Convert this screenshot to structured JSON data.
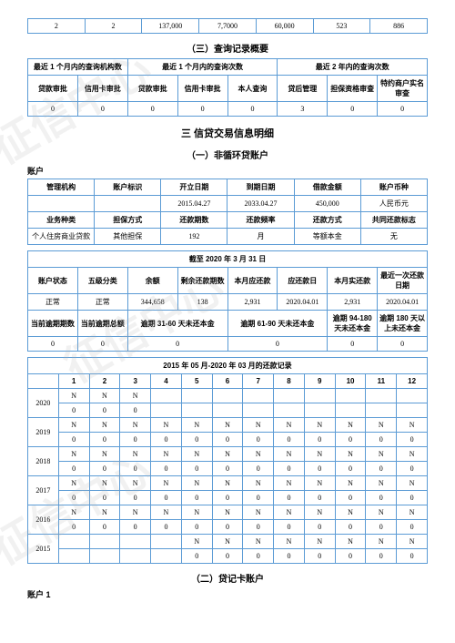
{
  "top_row": [
    "2",
    "2",
    "137,000",
    "7,7000",
    "60,000",
    "523",
    "886"
  ],
  "query_summary_title": "（三）查询记录概要",
  "query_headers_top": [
    "最近 1 个月内的查询机构数",
    "最近 1 个月内的查询次数",
    "最近 2 年内的查询次数"
  ],
  "query_headers": [
    "贷款审批",
    "信用卡审批",
    "贷款审批",
    "信用卡审批",
    "本人查询",
    "贷后管理",
    "担保资格审查",
    "特约商户实名审查"
  ],
  "query_values": [
    "0",
    "0",
    "0",
    "0",
    "0",
    "3",
    "0",
    "0"
  ],
  "section3_title": "三 信贷交易信息明细",
  "sub1_title": "（一）非循环贷账户",
  "account_label": "账户",
  "detail_h1": [
    "管理机构",
    "账户标识",
    "开立日期",
    "到期日期",
    "借款金额",
    "账户币种"
  ],
  "detail_v1": [
    "",
    "",
    "2015.04.27",
    "2033.04.27",
    "450,000",
    "人民币元"
  ],
  "detail_h2": [
    "业务种类",
    "担保方式",
    "还款期数",
    "还款频率",
    "还款方式",
    "共同还款标志"
  ],
  "detail_v2": [
    "个人住房商业贷款",
    "其他担保",
    "192",
    "月",
    "等额本金",
    "无"
  ],
  "cutoff_label": "截至 2020 年 3 月 31 日",
  "detail_h3": [
    "账户状态",
    "五级分类",
    "余额",
    "剩余还款期数",
    "本月应还款",
    "应还款日",
    "本月实还款",
    "最近一次还款日期"
  ],
  "detail_v3": [
    "正常",
    "正常",
    "344,658",
    "138",
    "2,931",
    "2020.04.01",
    "2,931",
    "2020.04.01"
  ],
  "detail_h4": [
    "当前逾期期数",
    "当前逾期总额",
    "逾期 31-60 天未还本金",
    "逾期 61-90 天未还本金",
    "逾期 94-180 天未还本金",
    "逾期 180 天以上未还本金"
  ],
  "detail_v4": [
    "0",
    "0",
    "0",
    "0",
    "0",
    "0"
  ],
  "repay_title": "2015 年 05 月-2020 年 03 月的还款记录",
  "months": [
    "1",
    "2",
    "3",
    "4",
    "5",
    "6",
    "7",
    "8",
    "9",
    "10",
    "11",
    "12"
  ],
  "years": [
    {
      "y": "2020",
      "r1": [
        "N",
        "N",
        "N",
        "",
        "",
        "",
        "",
        "",
        "",
        "",
        "",
        ""
      ],
      "r2": [
        "0",
        "0",
        "0",
        "",
        "",
        "",
        "",
        "",
        "",
        "",
        "",
        ""
      ]
    },
    {
      "y": "2019",
      "r1": [
        "N",
        "N",
        "N",
        "N",
        "N",
        "N",
        "N",
        "N",
        "N",
        "N",
        "N",
        "N"
      ],
      "r2": [
        "0",
        "0",
        "0",
        "0",
        "0",
        "0",
        "0",
        "0",
        "0",
        "0",
        "0",
        "0"
      ]
    },
    {
      "y": "2018",
      "r1": [
        "N",
        "N",
        "N",
        "N",
        "N",
        "N",
        "N",
        "N",
        "N",
        "N",
        "N",
        "N"
      ],
      "r2": [
        "0",
        "0",
        "0",
        "0",
        "0",
        "0",
        "0",
        "0",
        "0",
        "0",
        "0",
        "0"
      ]
    },
    {
      "y": "2017",
      "r1": [
        "N",
        "N",
        "N",
        "N",
        "N",
        "N",
        "N",
        "N",
        "N",
        "N",
        "N",
        "N"
      ],
      "r2": [
        "0",
        "0",
        "0",
        "0",
        "0",
        "0",
        "0",
        "0",
        "0",
        "0",
        "0",
        "0"
      ]
    },
    {
      "y": "2016",
      "r1": [
        "N",
        "N",
        "N",
        "N",
        "N",
        "N",
        "N",
        "N",
        "N",
        "N",
        "N",
        "N"
      ],
      "r2": [
        "0",
        "0",
        "0",
        "0",
        "0",
        "0",
        "0",
        "0",
        "0",
        "0",
        "0",
        "0"
      ]
    },
    {
      "y": "2015",
      "r1": [
        "",
        "",
        "",
        "",
        "N",
        "N",
        "N",
        "N",
        "N",
        "N",
        "N",
        "N"
      ],
      "r2": [
        "",
        "",
        "",
        "",
        "0",
        "0",
        "0",
        "0",
        "0",
        "0",
        "0",
        "0"
      ]
    }
  ],
  "sub2_title": "（二）贷记卡账户",
  "account1_label": "账户 1"
}
